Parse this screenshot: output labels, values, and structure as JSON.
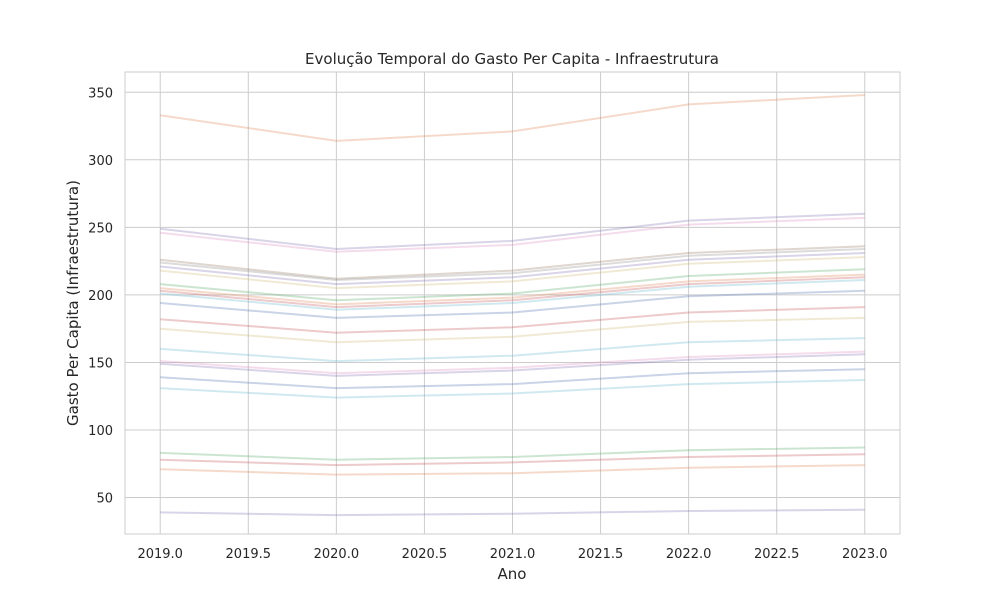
{
  "chart_data": {
    "type": "line",
    "title": "Evolução Temporal do Gasto Per Capita - Infraestrutura",
    "xlabel": "Ano",
    "ylabel": "Gasto Per Capita (Infraestrutura)",
    "xlim": [
      2018.8,
      2023.2
    ],
    "ylim": [
      23,
      365
    ],
    "xticks": [
      2019.0,
      2019.5,
      2020.0,
      2020.5,
      2021.0,
      2021.5,
      2022.0,
      2022.5,
      2023.0
    ],
    "xtick_labels": [
      "2019.0",
      "2019.5",
      "2020.0",
      "2020.5",
      "2021.0",
      "2021.5",
      "2022.0",
      "2022.5",
      "2023.0"
    ],
    "yticks": [
      50,
      100,
      150,
      200,
      250,
      300,
      350
    ],
    "ytick_labels": [
      "50",
      "100",
      "150",
      "200",
      "250",
      "300",
      "350"
    ],
    "grid": true,
    "legend": "none",
    "line_opacity": 0.3,
    "x": [
      2019,
      2020,
      2021,
      2022,
      2023
    ],
    "series": [
      {
        "color": "#dd8452",
        "values": [
          333,
          314,
          321,
          341,
          348
        ]
      },
      {
        "color": "#8172b3",
        "values": [
          249,
          234,
          240,
          255,
          260
        ]
      },
      {
        "color": "#da8bc3",
        "values": [
          246,
          232,
          237,
          252,
          257
        ]
      },
      {
        "color": "#937860",
        "values": [
          226,
          212,
          218,
          231,
          236
        ]
      },
      {
        "color": "#8c8c8c",
        "values": [
          224,
          211,
          216,
          229,
          234
        ]
      },
      {
        "color": "#8172b3",
        "values": [
          221,
          208,
          213,
          226,
          231
        ]
      },
      {
        "color": "#ccb974",
        "values": [
          218,
          205,
          210,
          223,
          228
        ]
      },
      {
        "color": "#55a868",
        "values": [
          208,
          196,
          201,
          214,
          219
        ]
      },
      {
        "color": "#dd8452",
        "values": [
          205,
          193,
          198,
          210,
          215
        ]
      },
      {
        "color": "#c44e52",
        "values": [
          203,
          191,
          196,
          208,
          213
        ]
      },
      {
        "color": "#64b5cd",
        "values": [
          201,
          189,
          194,
          206,
          211
        ]
      },
      {
        "color": "#4c72b0",
        "values": [
          194,
          183,
          187,
          199,
          203
        ]
      },
      {
        "color": "#c44e52",
        "values": [
          182,
          172,
          176,
          187,
          191
        ]
      },
      {
        "color": "#ccb974",
        "values": [
          175,
          165,
          169,
          180,
          183
        ]
      },
      {
        "color": "#64b5cd",
        "values": [
          160,
          151,
          155,
          165,
          168
        ]
      },
      {
        "color": "#da8bc3",
        "values": [
          151,
          142,
          146,
          154,
          158
        ]
      },
      {
        "color": "#8172b3",
        "values": [
          149,
          140,
          144,
          152,
          156
        ]
      },
      {
        "color": "#4c72b0",
        "values": [
          139,
          131,
          134,
          142,
          145
        ]
      },
      {
        "color": "#64b5cd",
        "values": [
          131,
          124,
          127,
          134,
          137
        ]
      },
      {
        "color": "#55a868",
        "values": [
          83,
          78,
          80,
          85,
          87
        ]
      },
      {
        "color": "#c44e52",
        "values": [
          78,
          74,
          76,
          80,
          82
        ]
      },
      {
        "color": "#dd8452",
        "values": [
          71,
          67,
          68,
          72,
          74
        ]
      },
      {
        "color": "#8172b3",
        "values": [
          39,
          37,
          38,
          40,
          41
        ]
      }
    ]
  }
}
